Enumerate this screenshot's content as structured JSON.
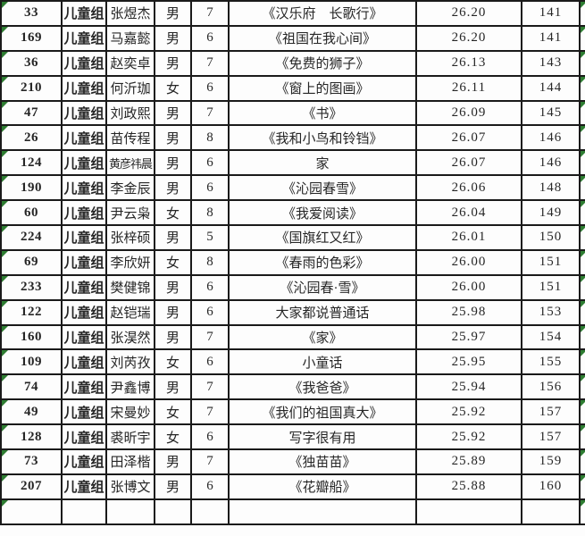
{
  "app": {
    "description": "spreadsheet-results-table",
    "colors": {
      "grid_border": "#1a1a1a",
      "cell_background": "#fdfdfd",
      "text": "#262626",
      "error_indicator_green": "#2e7d32"
    },
    "icons": {
      "cell_error_indicator": "green-corner-triangle"
    }
  },
  "table": {
    "columns": [
      "id",
      "group",
      "name",
      "gender",
      "age",
      "title",
      "score",
      "rank"
    ],
    "rows": [
      {
        "id": "33",
        "group": "儿童组",
        "name": "张煜杰",
        "gender": "男",
        "age": "7",
        "title": "《汉乐府　长歌行》",
        "score": "26.20",
        "rank": "141"
      },
      {
        "id": "169",
        "group": "儿童组",
        "name": "马嘉懿",
        "gender": "男",
        "age": "6",
        "title": "《祖国在我心间》",
        "score": "26.20",
        "rank": "141"
      },
      {
        "id": "36",
        "group": "儿童组",
        "name": "赵奕卓",
        "gender": "男",
        "age": "7",
        "title": "《免费的狮子》",
        "score": "26.13",
        "rank": "143"
      },
      {
        "id": "210",
        "group": "儿童组",
        "name": "何沂珈",
        "gender": "女",
        "age": "6",
        "title": "《窗上的图画》",
        "score": "26.11",
        "rank": "144"
      },
      {
        "id": "47",
        "group": "儿童组",
        "name": "刘政熙",
        "gender": "男",
        "age": "7",
        "title": "《书》",
        "score": "26.09",
        "rank": "145"
      },
      {
        "id": "26",
        "group": "儿童组",
        "name": "苗传程",
        "gender": "男",
        "age": "8",
        "title": "《我和小鸟和铃铛》",
        "score": "26.07",
        "rank": "146"
      },
      {
        "id": "124",
        "group": "儿童组",
        "name": "黄彦祎晨",
        "gender": "男",
        "age": "6",
        "title": "家",
        "score": "26.07",
        "rank": "146"
      },
      {
        "id": "190",
        "group": "儿童组",
        "name": "李金辰",
        "gender": "男",
        "age": "6",
        "title": "《沁园春雪》",
        "score": "26.06",
        "rank": "148"
      },
      {
        "id": "60",
        "group": "儿童组",
        "name": "尹云枭",
        "gender": "女",
        "age": "8",
        "title": "《我爱阅读》",
        "score": "26.04",
        "rank": "149"
      },
      {
        "id": "224",
        "group": "儿童组",
        "name": "张梓硕",
        "gender": "男",
        "age": "5",
        "title": "《国旗红又红》",
        "score": "26.01",
        "rank": "150"
      },
      {
        "id": "69",
        "group": "儿童组",
        "name": "李欣妍",
        "gender": "女",
        "age": "8",
        "title": "《春雨的色彩》",
        "score": "26.00",
        "rank": "151"
      },
      {
        "id": "233",
        "group": "儿童组",
        "name": "樊健锦",
        "gender": "男",
        "age": "6",
        "title": "《沁园春·雪》",
        "score": "26.00",
        "rank": "151"
      },
      {
        "id": "122",
        "group": "儿童组",
        "name": "赵铠瑞",
        "gender": "男",
        "age": "6",
        "title": "大家都说普通话",
        "score": "25.98",
        "rank": "153"
      },
      {
        "id": "160",
        "group": "儿童组",
        "name": "张淏然",
        "gender": "男",
        "age": "7",
        "title": "《家》",
        "score": "25.97",
        "rank": "154"
      },
      {
        "id": "109",
        "group": "儿童组",
        "name": "刘芮孜",
        "gender": "女",
        "age": "6",
        "title": "小童话",
        "score": "25.95",
        "rank": "155"
      },
      {
        "id": "74",
        "group": "儿童组",
        "name": "尹鑫博",
        "gender": "男",
        "age": "7",
        "title": "《我爸爸》",
        "score": "25.94",
        "rank": "156"
      },
      {
        "id": "49",
        "group": "儿童组",
        "name": "宋曼妙",
        "gender": "女",
        "age": "7",
        "title": "《我们的祖国真大》",
        "score": "25.92",
        "rank": "157"
      },
      {
        "id": "128",
        "group": "儿童组",
        "name": "裘昕宇",
        "gender": "女",
        "age": "6",
        "title": "写字很有用",
        "score": "25.92",
        "rank": "157"
      },
      {
        "id": "73",
        "group": "儿童组",
        "name": "田泽楷",
        "gender": "男",
        "age": "7",
        "title": "《独苗苗》",
        "score": "25.89",
        "rank": "159"
      },
      {
        "id": "207",
        "group": "儿童组",
        "name": "张博文",
        "gender": "男",
        "age": "6",
        "title": "《花瓣船》",
        "score": "25.88",
        "rank": "160"
      }
    ],
    "partial_next_row_visible": true,
    "error_indicator_on": [
      "id_cells",
      "right_edge_cells"
    ]
  }
}
